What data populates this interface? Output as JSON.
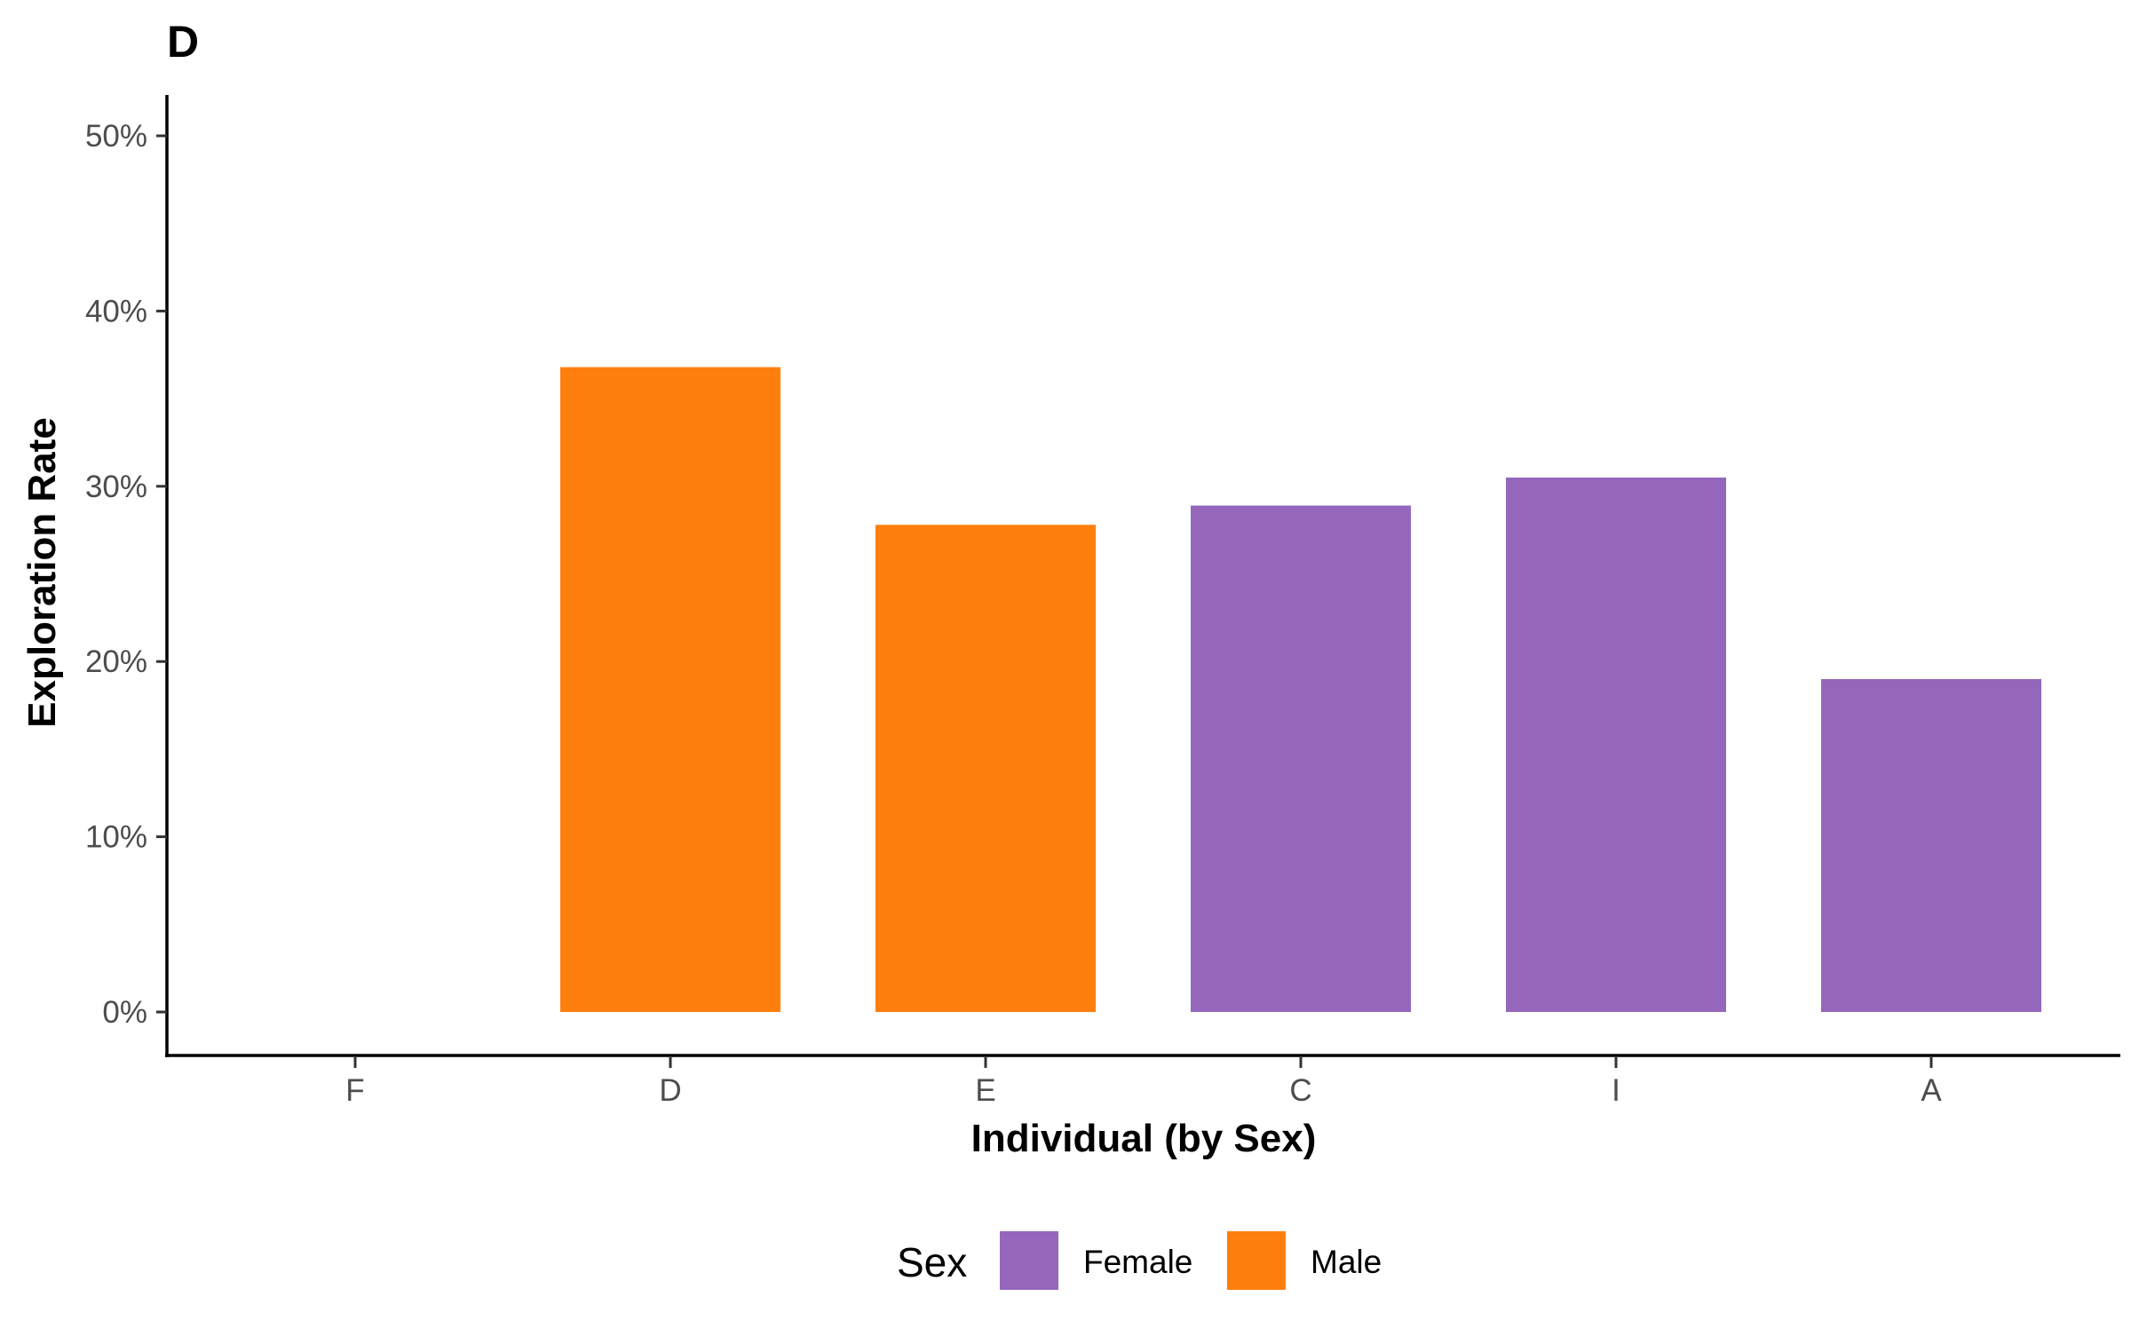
{
  "chart_data": {
    "type": "bar",
    "tag": "D",
    "xlabel": "Individual (by Sex)",
    "ylabel": "Exploration Rate",
    "categories": [
      "F",
      "D",
      "E",
      "C",
      "I",
      "A"
    ],
    "values": [
      0,
      36.8,
      27.8,
      28.9,
      30.5,
      19.0
    ],
    "groups": [
      "",
      "Male",
      "Male",
      "Female",
      "Female",
      "Female"
    ],
    "ylim": [
      0,
      52.5
    ],
    "yticks": [
      0,
      10,
      20,
      30,
      40,
      50
    ],
    "ytick_suffix": "%",
    "grid": false,
    "legend": {
      "title": "Sex",
      "position": "bottom",
      "entries": [
        {
          "label": "Female",
          "color": "#9467bd"
        },
        {
          "label": "Male",
          "color": "#ff7f0e"
        }
      ]
    }
  }
}
